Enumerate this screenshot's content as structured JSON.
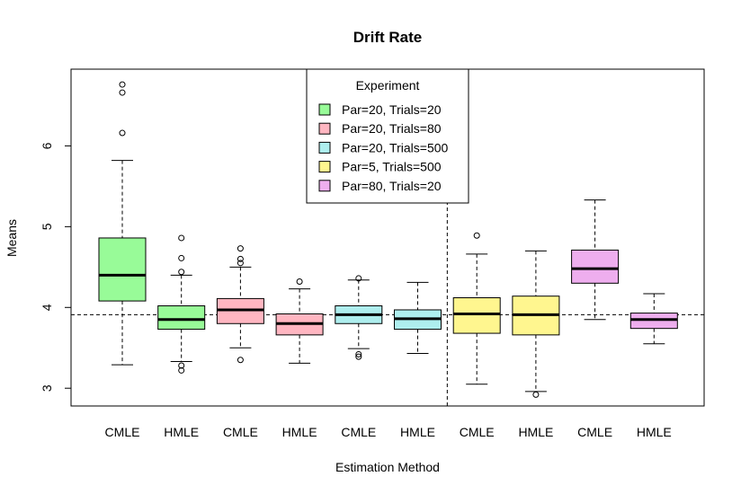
{
  "chart_data": {
    "type": "boxplot",
    "title": "Drift Rate",
    "xlabel": "Estimation Method",
    "ylabel": "Means",
    "ylim": [
      2.78,
      6.95
    ],
    "yticks": [
      3,
      4,
      5,
      6
    ],
    "reference_line_y": 3.91,
    "vertical_divider_after_category_index": 6,
    "categories": [
      "CMLE",
      "HMLE",
      "CMLE",
      "HMLE",
      "CMLE",
      "HMLE",
      "CMLE",
      "HMLE",
      "CMLE",
      "HMLE"
    ],
    "legend": {
      "title": "Experiment",
      "placement": "top-center",
      "entries": [
        {
          "label": "Par=20, Trials=20",
          "color": "#98fb98"
        },
        {
          "label": "Par=20, Trials=80",
          "color": "#ffb6c1"
        },
        {
          "label": "Par=20, Trials=500",
          "color": "#aeeeee"
        },
        {
          "label": "Par=5, Trials=500",
          "color": "#fff68f"
        },
        {
          "label": "Par=80, Trials=20",
          "color": "#eeaeee"
        }
      ]
    },
    "boxes": [
      {
        "category": "CMLE",
        "experiment": 0,
        "whisker_low": 3.29,
        "q1": 4.08,
        "median": 4.4,
        "q3": 4.86,
        "whisker_high": 5.82,
        "outliers": [
          6.16,
          6.66,
          6.76
        ]
      },
      {
        "category": "HMLE",
        "experiment": 0,
        "whisker_low": 3.33,
        "q1": 3.73,
        "median": 3.85,
        "q3": 4.02,
        "whisker_high": 4.4,
        "outliers": [
          3.22,
          3.28,
          4.44,
          4.61,
          4.86
        ]
      },
      {
        "category": "CMLE",
        "experiment": 1,
        "whisker_low": 3.5,
        "q1": 3.8,
        "median": 3.97,
        "q3": 4.11,
        "whisker_high": 4.5,
        "outliers": [
          3.35,
          4.55,
          4.6,
          4.73
        ]
      },
      {
        "category": "HMLE",
        "experiment": 1,
        "whisker_low": 3.31,
        "q1": 3.66,
        "median": 3.8,
        "q3": 3.92,
        "whisker_high": 4.23,
        "outliers": [
          4.32
        ]
      },
      {
        "category": "CMLE",
        "experiment": 2,
        "whisker_low": 3.49,
        "q1": 3.8,
        "median": 3.91,
        "q3": 4.02,
        "whisker_high": 4.34,
        "outliers": [
          3.39,
          3.42,
          4.36
        ]
      },
      {
        "category": "HMLE",
        "experiment": 2,
        "whisker_low": 3.43,
        "q1": 3.73,
        "median": 3.86,
        "q3": 3.97,
        "whisker_high": 4.31,
        "outliers": []
      },
      {
        "category": "CMLE",
        "experiment": 3,
        "whisker_low": 3.05,
        "q1": 3.68,
        "median": 3.92,
        "q3": 4.12,
        "whisker_high": 4.66,
        "outliers": [
          4.89
        ]
      },
      {
        "category": "HMLE",
        "experiment": 3,
        "whisker_low": 2.96,
        "q1": 3.66,
        "median": 3.91,
        "q3": 4.14,
        "whisker_high": 4.7,
        "outliers": [
          2.92
        ]
      },
      {
        "category": "CMLE",
        "experiment": 4,
        "whisker_low": 3.85,
        "q1": 4.3,
        "median": 4.48,
        "q3": 4.71,
        "whisker_high": 5.33,
        "outliers": []
      },
      {
        "category": "HMLE",
        "experiment": 4,
        "whisker_low": 3.55,
        "q1": 3.74,
        "median": 3.85,
        "q3": 3.93,
        "whisker_high": 4.17,
        "outliers": []
      }
    ]
  }
}
